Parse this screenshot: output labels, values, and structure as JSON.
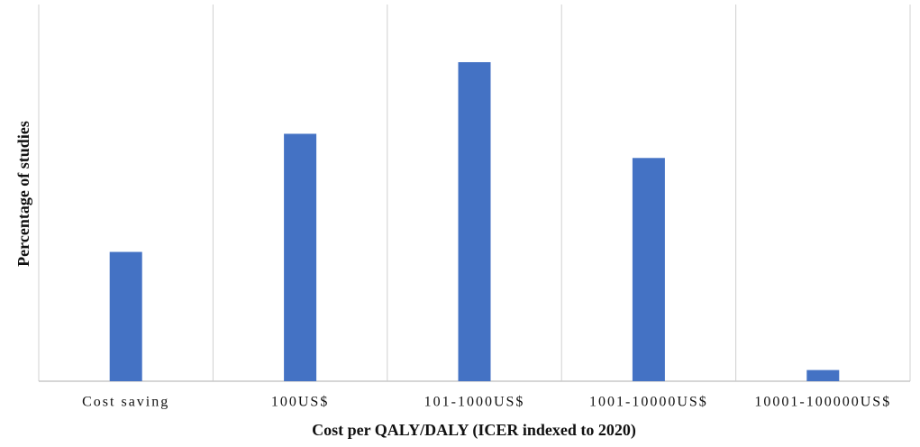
{
  "chart_data": {
    "type": "bar",
    "x_label": "Cost per QALY/DALY  (ICER  indexed  to  2020)",
    "y_label": "Percentage of studies",
    "categories": [
      "Cost saving",
      "100US$",
      "101-1000US$",
      "1001-10000US$",
      "10001-100000US$"
    ],
    "values": [
      13.9,
      26.6,
      34.3,
      24.0,
      1.2
    ],
    "color": "#4472c4",
    "ylim": [
      0,
      40.5
    ],
    "grid": true
  }
}
